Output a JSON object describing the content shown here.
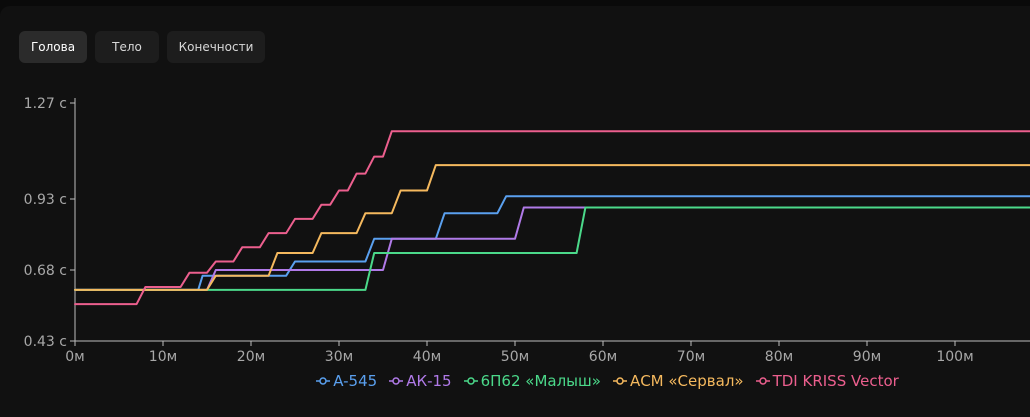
{
  "tabs": [
    {
      "label": "Голова",
      "active": true
    },
    {
      "label": "Тело",
      "active": false
    },
    {
      "label": "Конечности",
      "active": false
    }
  ],
  "chart_data": {
    "type": "line",
    "x_tick_labels": [
      "0м",
      "10м",
      "20м",
      "30м",
      "40м",
      "50м",
      "60м",
      "70м",
      "80м",
      "90м",
      "100м",
      "1"
    ],
    "y_tick_labels": [
      "0.43 с",
      "0.68 с",
      "0.93 с",
      "1.27 с"
    ],
    "y_ticks": [
      0.43,
      0.68,
      0.93,
      1.27
    ],
    "xlim": [
      0,
      110
    ],
    "ylim": [
      0.43,
      1.27
    ],
    "grid": false,
    "legend_position": "bottom",
    "series": [
      {
        "name": "A-545",
        "color": "#5aa0ef",
        "points": [
          [
            0,
            0.61
          ],
          [
            14,
            0.61
          ],
          [
            14.5,
            0.66
          ],
          [
            24,
            0.66
          ],
          [
            25,
            0.71
          ],
          [
            33,
            0.71
          ],
          [
            34,
            0.79
          ],
          [
            41,
            0.79
          ],
          [
            42,
            0.88
          ],
          [
            48,
            0.88
          ],
          [
            49,
            0.94
          ],
          [
            110,
            0.94
          ]
        ]
      },
      {
        "name": "АК-15",
        "color": "#b07ae8",
        "points": [
          [
            0,
            0.61
          ],
          [
            15,
            0.61
          ],
          [
            16,
            0.68
          ],
          [
            35,
            0.68
          ],
          [
            36,
            0.79
          ],
          [
            50,
            0.79
          ],
          [
            51,
            0.9
          ],
          [
            110,
            0.9
          ]
        ]
      },
      {
        "name": "6П62 «Малыш»",
        "color": "#4bd98a",
        "points": [
          [
            0,
            0.61
          ],
          [
            33,
            0.61
          ],
          [
            34,
            0.74
          ],
          [
            57,
            0.74
          ],
          [
            58,
            0.9
          ],
          [
            110,
            0.9
          ]
        ]
      },
      {
        "name": "АСМ «Сервал»",
        "color": "#f5b95e",
        "points": [
          [
            0,
            0.61
          ],
          [
            15,
            0.61
          ],
          [
            16,
            0.66
          ],
          [
            22,
            0.66
          ],
          [
            23,
            0.74
          ],
          [
            27,
            0.74
          ],
          [
            28,
            0.81
          ],
          [
            32,
            0.81
          ],
          [
            33,
            0.88
          ],
          [
            36,
            0.88
          ],
          [
            37,
            0.96
          ],
          [
            40,
            0.96
          ],
          [
            41,
            1.05
          ],
          [
            110,
            1.05
          ]
        ]
      },
      {
        "name": "TDI KRISS Vector",
        "color": "#ec5f8e",
        "points": [
          [
            0,
            0.56
          ],
          [
            7,
            0.56
          ],
          [
            8,
            0.62
          ],
          [
            12,
            0.62
          ],
          [
            13,
            0.67
          ],
          [
            15,
            0.67
          ],
          [
            16,
            0.71
          ],
          [
            18,
            0.71
          ],
          [
            19,
            0.76
          ],
          [
            21,
            0.76
          ],
          [
            22,
            0.81
          ],
          [
            24,
            0.81
          ],
          [
            25,
            0.86
          ],
          [
            27,
            0.86
          ],
          [
            28,
            0.91
          ],
          [
            29,
            0.91
          ],
          [
            30,
            0.96
          ],
          [
            31,
            0.96
          ],
          [
            32,
            1.02
          ],
          [
            33,
            1.02
          ],
          [
            34,
            1.08
          ],
          [
            35,
            1.08
          ],
          [
            36,
            1.17
          ],
          [
            110,
            1.17
          ]
        ]
      }
    ]
  }
}
